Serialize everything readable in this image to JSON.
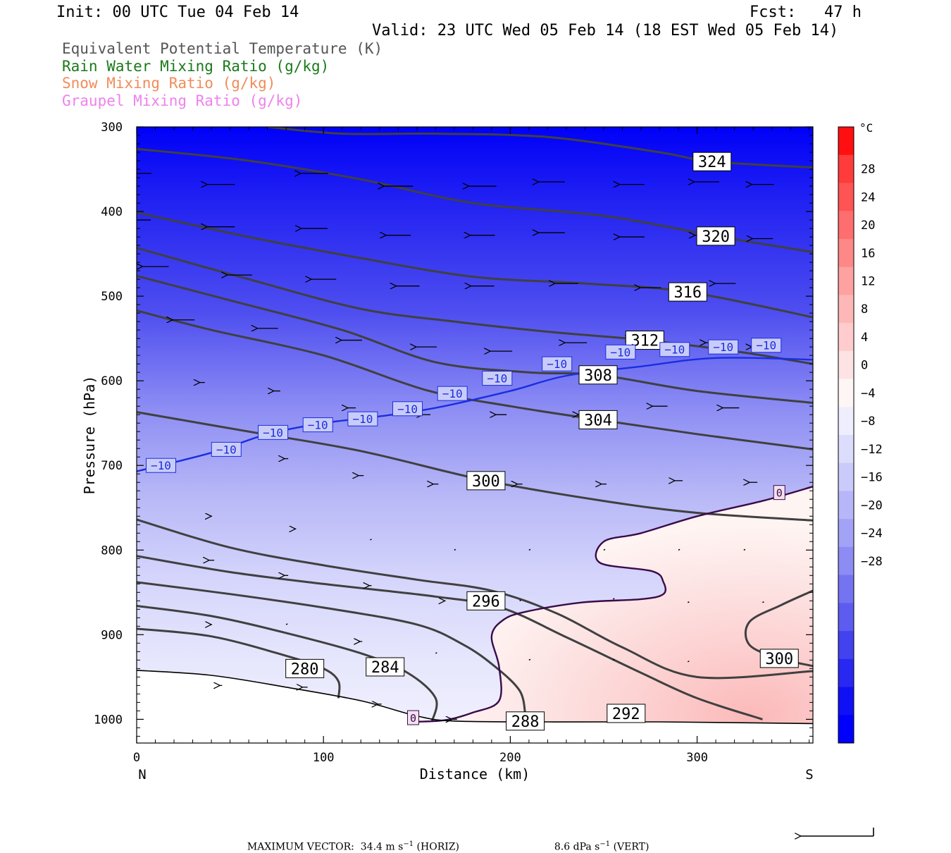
{
  "header": {
    "init": "Init: 00 UTC Tue 04 Feb 14",
    "fcst": "Fcst:   47 h",
    "valid": "Valid: 23 UTC Wed 05 Feb 14 (18 EST Wed 05 Feb 14)"
  },
  "legend": [
    {
      "label": "Equivalent Potential Temperature (K)",
      "color": "#555555"
    },
    {
      "label": "Rain Water Mixing Ratio (g/kg)",
      "color": "#1a7a1a"
    },
    {
      "label": "Snow Mixing Ratio (g/kg)",
      "color": "#f08c5a"
    },
    {
      "label": "Graupel Mixing Ratio (g/kg)",
      "color": "#ee82ee"
    }
  ],
  "footer": {
    "max_vector_label": "MAXIMUM VECTOR:",
    "horiz_value": "34.4",
    "horiz_unit": "m s",
    "horiz_exp": "−1",
    "horiz_tag": "(HORIZ)",
    "vert_value": "8.6",
    "vert_unit": "dPa s",
    "vert_exp": "−1",
    "vert_tag": "(VERT)"
  },
  "chart_data": {
    "type": "cross-section",
    "xlabel": "Distance (km)",
    "ylabel": "Pressure (hPa)",
    "xlim": [
      0,
      362
    ],
    "ylim": [
      1028,
      300
    ],
    "x_ticks": [
      0,
      100,
      200,
      300
    ],
    "y_ticks": [
      300,
      400,
      500,
      600,
      700,
      800,
      900,
      1000
    ],
    "left_end_label": "N",
    "right_end_label": "S",
    "colorbar": {
      "unit": "°C",
      "tick_labels": [
        "28",
        "24",
        "20",
        "16",
        "12",
        "8",
        "4",
        "0",
        "−4",
        "−8",
        "−12",
        "−16",
        "−20",
        "−24",
        "−28"
      ],
      "bins": [
        "#ff0f0f",
        "#ff3b3b",
        "#ff5454",
        "#ff6e6e",
        "#fe8787",
        "#fea1a1",
        "#feb7b7",
        "#fecccc",
        "#fde3e3",
        "#fef6f4",
        "#eeeefe",
        "#dcdcfd",
        "#cacafb",
        "#b6b6f8",
        "#a2a2f6",
        "#8c8cf4",
        "#7474f2",
        "#5c5cf0",
        "#4242f0",
        "#2828f2",
        "#1010f6",
        "#0000fc"
      ]
    },
    "theta_e": [
      {
        "value": 280,
        "label_pos": [
          90,
          940
        ],
        "points": [
          [
            0,
            893
          ],
          [
            40,
            902
          ],
          [
            80,
            925
          ],
          [
            100,
            940
          ],
          [
            108,
            955
          ],
          [
            108,
            975
          ]
        ]
      },
      {
        "value": 284,
        "label_pos": [
          133,
          938
        ],
        "points": [
          [
            0,
            866
          ],
          [
            40,
            878
          ],
          [
            80,
            898
          ],
          [
            120,
            922
          ],
          [
            145,
            945
          ],
          [
            160,
            975
          ],
          [
            158,
            1003
          ]
        ]
      },
      {
        "value": 288,
        "label_pos": [
          208,
          1002
        ],
        "points": [
          [
            0,
            838
          ],
          [
            50,
            852
          ],
          [
            100,
            868
          ],
          [
            150,
            888
          ],
          [
            175,
            912
          ],
          [
            192,
            938
          ],
          [
            205,
            966
          ],
          [
            208,
            993
          ]
        ]
      },
      {
        "value": 292,
        "label_pos": [
          262,
          993
        ],
        "points": [
          [
            0,
            807
          ],
          [
            50,
            826
          ],
          [
            100,
            840
          ],
          [
            160,
            855
          ],
          [
            195,
            868
          ],
          [
            230,
            903
          ],
          [
            270,
            945
          ],
          [
            300,
            975
          ],
          [
            335,
            1000
          ]
        ]
      },
      {
        "value": 296,
        "label_pos": [
          187,
          860
        ],
        "points": [
          [
            0,
            764
          ],
          [
            50,
            797
          ],
          [
            100,
            818
          ],
          [
            150,
            835
          ],
          [
            190,
            848
          ],
          [
            225,
            875
          ],
          [
            260,
            915
          ],
          [
            300,
            950
          ],
          [
            362,
            943
          ]
        ]
      },
      {
        "value": 300,
        "label_pos": [
          187,
          718
        ],
        "points": [
          [
            0,
            637
          ],
          [
            60,
            660
          ],
          [
            120,
            683
          ],
          [
            187,
            718
          ],
          [
            250,
            742
          ],
          [
            300,
            756
          ],
          [
            362,
            765
          ]
        ]
      },
      {
        "value": 300,
        "label_pos": [
          344,
          928
        ],
        "points": [
          [
            362,
            848
          ],
          [
            345,
            865
          ],
          [
            328,
            885
          ],
          [
            328,
            912
          ],
          [
            344,
            928
          ],
          [
            362,
            937
          ]
        ]
      },
      {
        "value": 304,
        "label_pos": [
          247,
          646
        ],
        "points": [
          [
            0,
            517
          ],
          [
            40,
            540
          ],
          [
            100,
            570
          ],
          [
            155,
            611
          ],
          [
            200,
            630
          ],
          [
            247,
            646
          ],
          [
            300,
            663
          ],
          [
            362,
            681
          ]
        ]
      },
      {
        "value": 308,
        "label_pos": [
          247,
          593
        ],
        "points": [
          [
            0,
            476
          ],
          [
            50,
            505
          ],
          [
            110,
            540
          ],
          [
            160,
            578
          ],
          [
            210,
            590
          ],
          [
            247,
            593
          ],
          [
            300,
            612
          ],
          [
            362,
            626
          ]
        ]
      },
      {
        "value": 312,
        "label_pos": [
          272,
          552
        ],
        "points": [
          [
            0,
            443
          ],
          [
            60,
            480
          ],
          [
            120,
            515
          ],
          [
            170,
            530
          ],
          [
            220,
            542
          ],
          [
            272,
            552
          ],
          [
            320,
            565
          ],
          [
            362,
            580
          ]
        ]
      },
      {
        "value": 316,
        "label_pos": [
          295,
          495
        ],
        "points": [
          [
            0,
            401
          ],
          [
            60,
            430
          ],
          [
            120,
            455
          ],
          [
            180,
            477
          ],
          [
            240,
            485
          ],
          [
            295,
            495
          ],
          [
            362,
            525
          ]
        ]
      },
      {
        "value": 320,
        "label_pos": [
          310,
          429
        ],
        "points": [
          [
            0,
            326
          ],
          [
            60,
            340
          ],
          [
            120,
            362
          ],
          [
            180,
            390
          ],
          [
            250,
            405
          ],
          [
            310,
            429
          ],
          [
            362,
            448
          ]
        ]
      },
      {
        "value": 324,
        "label_pos": [
          308,
          341
        ],
        "points": [
          [
            70,
            300
          ],
          [
            110,
            308
          ],
          [
            160,
            308
          ],
          [
            220,
            312
          ],
          [
            280,
            330
          ],
          [
            308,
            341
          ],
          [
            362,
            348
          ]
        ]
      }
    ],
    "t_minus10_isotherm": {
      "value": -10,
      "points": [
        [
          0,
          707
        ],
        [
          40,
          685
        ],
        [
          70,
          663
        ],
        [
          100,
          650
        ],
        [
          130,
          642
        ],
        [
          160,
          632
        ],
        [
          200,
          612
        ],
        [
          230,
          594
        ],
        [
          270,
          583
        ],
        [
          310,
          573
        ],
        [
          362,
          575
        ]
      ],
      "label_positions": [
        [
          13,
          700
        ],
        [
          48,
          681
        ],
        [
          73,
          661
        ],
        [
          97,
          652
        ],
        [
          121,
          645
        ],
        [
          145,
          633
        ],
        [
          169,
          615
        ],
        [
          193,
          597
        ],
        [
          225,
          580
        ],
        [
          259,
          566
        ],
        [
          288,
          563
        ],
        [
          314,
          560
        ],
        [
          337,
          558
        ]
      ]
    },
    "zero_isotherm": {
      "value": 0,
      "points": [
        [
          147,
          1003
        ],
        [
          165,
          1001
        ],
        [
          180,
          992
        ],
        [
          194,
          978
        ],
        [
          194,
          938
        ],
        [
          190,
          902
        ],
        [
          196,
          883
        ],
        [
          208,
          873
        ],
        [
          238,
          862
        ],
        [
          270,
          858
        ],
        [
          282,
          852
        ],
        [
          282,
          838
        ],
        [
          276,
          825
        ],
        [
          248,
          815
        ],
        [
          250,
          790
        ],
        [
          270,
          780
        ],
        [
          300,
          760
        ],
        [
          335,
          742
        ],
        [
          362,
          725
        ]
      ],
      "label_positions": [
        [
          344,
          732
        ],
        [
          148,
          998
        ]
      ]
    },
    "surface": {
      "points": [
        [
          0,
          942
        ],
        [
          40,
          948
        ],
        [
          80,
          962
        ],
        [
          120,
          978
        ],
        [
          150,
          996
        ],
        [
          170,
          1002
        ],
        [
          220,
          1003
        ],
        [
          280,
          1003
        ],
        [
          362,
          1005
        ]
      ]
    },
    "wind_vectors": [
      [
        0,
        355,
        -42,
        0
      ],
      [
        45,
        368,
        -40,
        0
      ],
      [
        95,
        355,
        -40,
        0
      ],
      [
        140,
        370,
        -42,
        0
      ],
      [
        185,
        370,
        -40,
        0
      ],
      [
        222,
        365,
        -38,
        0
      ],
      [
        265,
        368,
        -36,
        0
      ],
      [
        305,
        365,
        -36,
        0
      ],
      [
        335,
        368,
        -32,
        0
      ],
      [
        0,
        410,
        -40,
        0
      ],
      [
        45,
        418,
        -40,
        0
      ],
      [
        95,
        420,
        -38,
        0
      ],
      [
        140,
        428,
        -36,
        0
      ],
      [
        185,
        428,
        -36,
        0
      ],
      [
        222,
        425,
        -38,
        0
      ],
      [
        265,
        430,
        -36,
        0
      ],
      [
        305,
        428,
        -34,
        0
      ],
      [
        335,
        432,
        -30,
        0
      ],
      [
        10,
        465,
        -38,
        0
      ],
      [
        55,
        475,
        -36,
        0
      ],
      [
        100,
        480,
        -36,
        0
      ],
      [
        145,
        488,
        -34,
        0
      ],
      [
        185,
        488,
        -34,
        0
      ],
      [
        230,
        485,
        -34,
        0
      ],
      [
        275,
        490,
        -30,
        0
      ],
      [
        315,
        485,
        -30,
        0
      ],
      [
        25,
        528,
        -32,
        0
      ],
      [
        70,
        538,
        -30,
        0
      ],
      [
        115,
        552,
        -30,
        0
      ],
      [
        155,
        560,
        -30,
        0
      ],
      [
        195,
        565,
        -32,
        0
      ],
      [
        235,
        555,
        -32,
        0
      ],
      [
        270,
        550,
        -30,
        0
      ],
      [
        310,
        555,
        -30,
        0
      ],
      [
        335,
        560,
        -32,
        0
      ],
      [
        35,
        602,
        -8,
        0
      ],
      [
        75,
        612,
        -10,
        0
      ],
      [
        115,
        632,
        -12,
        0
      ],
      [
        155,
        640,
        -12,
        0
      ],
      [
        195,
        640,
        -16,
        0
      ],
      [
        240,
        640,
        -20,
        0
      ],
      [
        280,
        630,
        -22,
        0
      ],
      [
        318,
        632,
        -24,
        0
      ],
      [
        80,
        692,
        -6,
        0
      ],
      [
        120,
        712,
        -8,
        0
      ],
      [
        160,
        722,
        -8,
        0
      ],
      [
        205,
        722,
        -8,
        0
      ],
      [
        250,
        722,
        -8,
        0
      ],
      [
        290,
        718,
        -12,
        0
      ],
      [
        330,
        720,
        -12,
        0
      ],
      [
        40,
        760,
        -2,
        0
      ],
      [
        85,
        775,
        -2,
        0
      ],
      [
        125,
        788,
        0,
        0
      ],
      [
        170,
        800,
        0,
        0
      ],
      [
        210,
        800,
        0,
        0
      ],
      [
        250,
        800,
        0,
        0
      ],
      [
        290,
        800,
        0,
        0
      ],
      [
        325,
        800,
        0,
        0
      ],
      [
        40,
        812,
        -8,
        0
      ],
      [
        80,
        830,
        -6,
        0
      ],
      [
        125,
        842,
        -4,
        0
      ],
      [
        165,
        860,
        -2,
        0
      ],
      [
        205,
        860,
        0,
        0
      ],
      [
        255,
        858,
        0,
        0
      ],
      [
        295,
        862,
        0,
        0
      ],
      [
        335,
        862,
        0,
        0
      ],
      [
        40,
        888,
        -2,
        0
      ],
      [
        80,
        888,
        0,
        0
      ],
      [
        120,
        908,
        -4,
        0
      ],
      [
        160,
        922,
        0,
        0
      ],
      [
        210,
        930,
        0,
        0
      ],
      [
        255,
        930,
        0,
        0
      ],
      [
        295,
        932,
        0,
        0
      ],
      [
        340,
        938,
        0,
        0
      ],
      [
        45,
        960,
        -4,
        0
      ],
      [
        90,
        962,
        -8,
        0
      ],
      [
        130,
        982,
        -6,
        0
      ],
      [
        170,
        1000,
        -8,
        0
      ]
    ]
  }
}
